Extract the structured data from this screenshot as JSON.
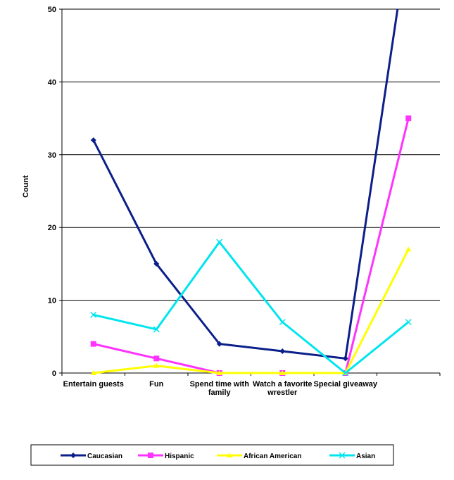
{
  "chart_data": {
    "type": "line",
    "title": "",
    "xlabel": "",
    "ylabel": "Count",
    "ylim": [
      0,
      50
    ],
    "yticks": [
      0,
      10,
      20,
      30,
      40,
      50
    ],
    "grid": true,
    "legend_position": "bottom",
    "categories": [
      [
        "Entertain guests"
      ],
      [
        "Fun"
      ],
      [
        "Spend time with",
        "family"
      ],
      [
        "Watch a favorite",
        "wrestler"
      ],
      [
        "Special giveaway"
      ],
      [
        ""
      ]
    ],
    "series": [
      {
        "name": "Caucasian",
        "color": "#0b1f8a",
        "marker": "diamond",
        "values": [
          32,
          15,
          4,
          3,
          2,
          60
        ]
      },
      {
        "name": "Hispanic",
        "color": "#ff33ff",
        "marker": "square",
        "values": [
          4,
          2,
          0,
          0,
          0,
          35
        ]
      },
      {
        "name": "African American",
        "color": "#ffff00",
        "marker": "triangle",
        "values": [
          0,
          1,
          0,
          0,
          0,
          17
        ]
      },
      {
        "name": "Asian",
        "color": "#00e5ee",
        "marker": "x",
        "values": [
          8,
          6,
          18,
          7,
          0,
          7
        ]
      }
    ]
  }
}
